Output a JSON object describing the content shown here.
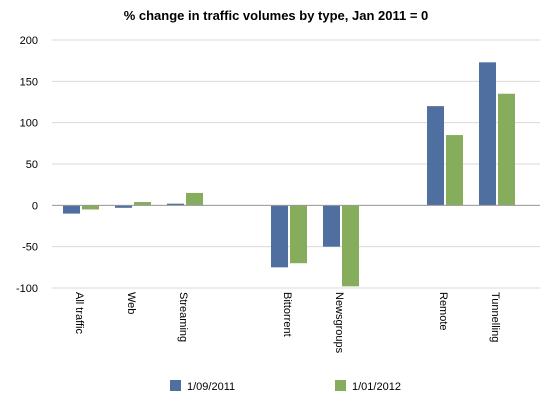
{
  "chart_data": {
    "type": "bar",
    "title": "% change in traffic volumes by type, Jan 2011 = 0",
    "xlabel": "",
    "ylabel": "",
    "ylim": [
      -100,
      200
    ],
    "yticks": [
      "200",
      "150",
      "100",
      "50",
      "0",
      "-50",
      "-100"
    ],
    "categories": [
      "All traffic",
      "Web",
      "Streaming",
      "Bittorrent",
      "Newsgroups",
      "Remote",
      "Tunnelling"
    ],
    "series": [
      {
        "name": "1/09/2011",
        "color": "#4f6fa0",
        "values": [
          -10,
          -3,
          2,
          -75,
          -50,
          120,
          173
        ]
      },
      {
        "name": "1/01/2012",
        "color": "#85ad5c",
        "values": [
          -5,
          4,
          15,
          -70,
          -98,
          85,
          135
        ]
      }
    ],
    "grid": true,
    "legend": "bottom"
  }
}
